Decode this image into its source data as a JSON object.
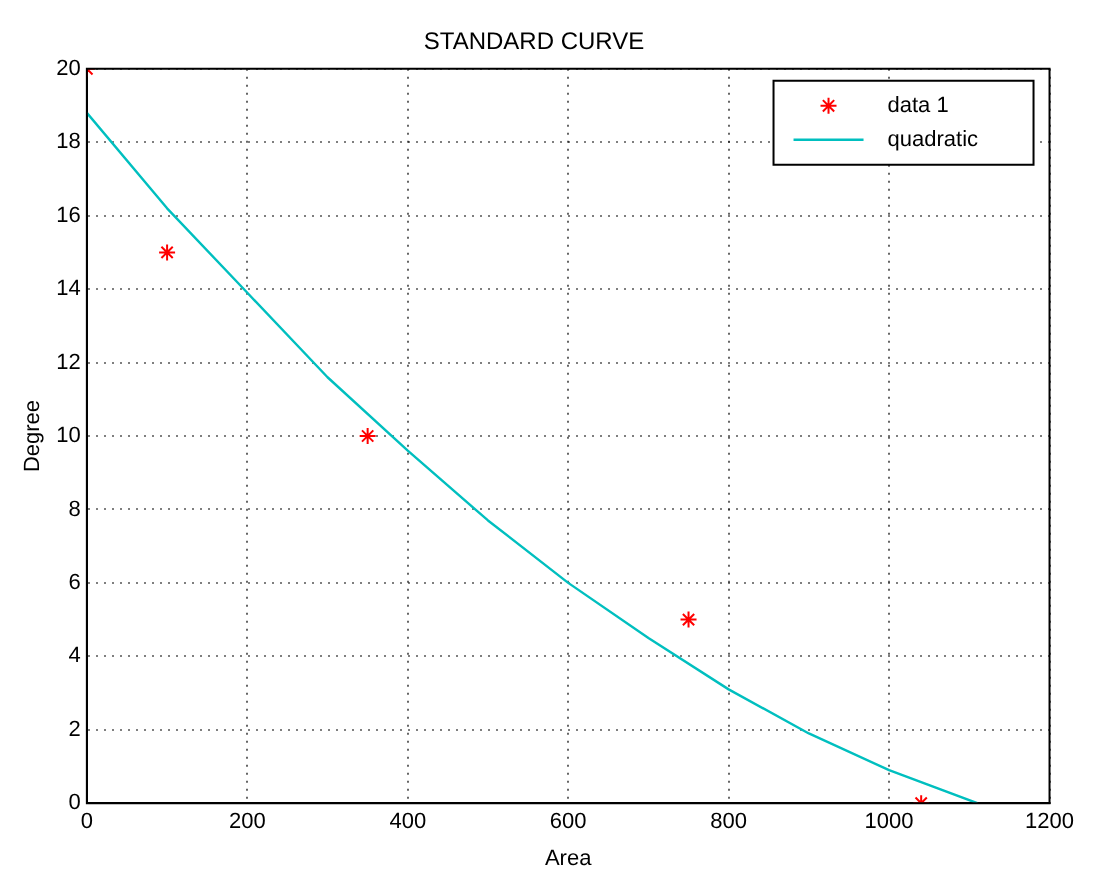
{
  "chart_data": {
    "type": "scatter",
    "title": "STANDARD CURVE",
    "xlabel": "Area",
    "ylabel": "Degree",
    "series": [
      {
        "name": "data 1",
        "type": "scatter",
        "color": "#ff0000",
        "marker": "cross",
        "x": [
          0,
          100,
          350,
          750,
          1040
        ],
        "values": [
          20,
          15,
          10,
          5,
          0
        ]
      },
      {
        "name": "quadratic",
        "type": "line",
        "color": "#00bfbf",
        "marker": "none",
        "line_style": "solid",
        "x": [
          0,
          100,
          200,
          300,
          400,
          500,
          600,
          700,
          800,
          900,
          1000,
          1110
        ],
        "values": [
          18.8,
          16.2,
          13.9,
          11.6,
          9.6,
          7.7,
          6.0,
          4.5,
          3.1,
          1.9,
          0.9,
          0
        ]
      }
    ],
    "xlim": [
      0,
      1200
    ],
    "xticks": [
      0,
      200,
      400,
      600,
      800,
      1000,
      1200
    ],
    "ylim": [
      0,
      20
    ],
    "yticks": [
      0,
      2,
      4,
      6,
      8,
      10,
      12,
      14,
      16,
      18,
      20
    ],
    "grid": true,
    "legend": "top right"
  }
}
